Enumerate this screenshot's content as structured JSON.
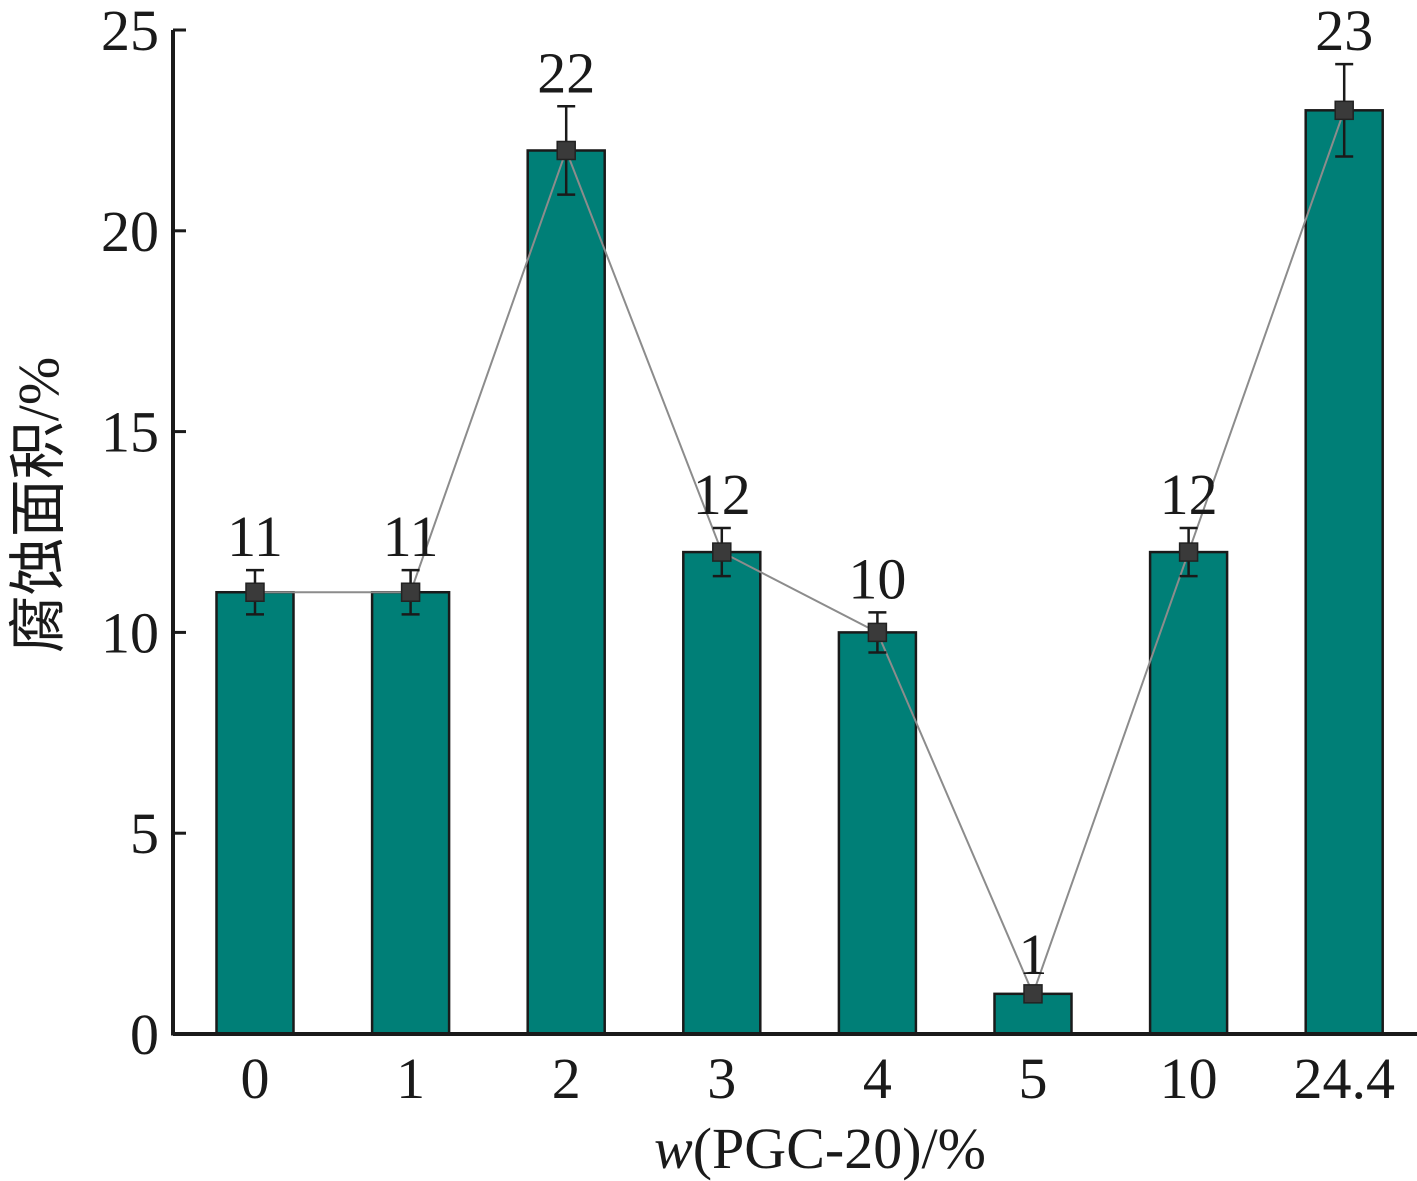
{
  "chart_data": {
    "type": "bar",
    "title": "",
    "xlabel_italic": "w",
    "xlabel_rest": "(PGC-20)/%",
    "ylabel": "腐蚀面积/%",
    "categories": [
      "0",
      "1",
      "2",
      "3",
      "4",
      "5",
      "10",
      "24.4"
    ],
    "values": [
      11,
      11,
      22,
      12,
      10,
      1,
      12,
      23
    ],
    "data_labels": [
      "11",
      "11",
      "22",
      "12",
      "10",
      "1",
      "12",
      "23"
    ],
    "error": [
      0.55,
      0.55,
      1.1,
      0.6,
      0.5,
      0.15,
      0.6,
      1.15
    ],
    "ylim": [
      0,
      25
    ],
    "yticks": [
      0,
      5,
      10,
      15,
      20,
      25
    ],
    "ytick_labels": [
      "0",
      "5",
      "10",
      "15",
      "20",
      "25"
    ],
    "grid": false,
    "overlay_line": true,
    "colors": {
      "bar": "#007f77",
      "bar_edge": "#1a1a1a",
      "marker": "#3a3a3a",
      "line": "#8c8c8c",
      "axis": "#1a1a1a"
    }
  }
}
